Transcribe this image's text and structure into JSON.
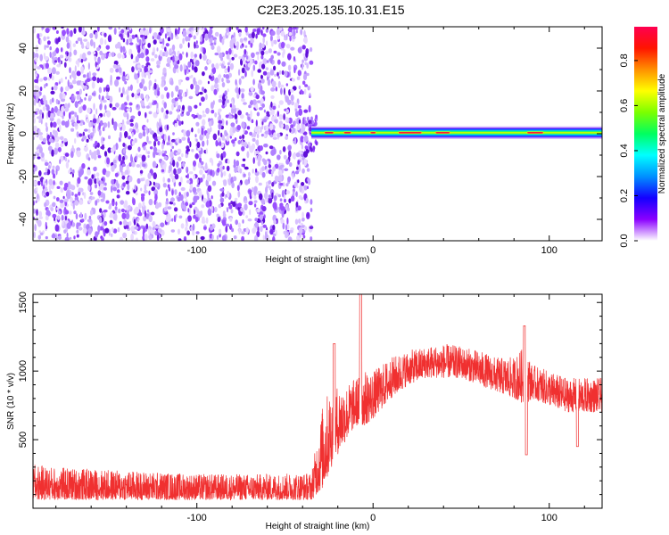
{
  "title": "C2E3.2025.135.10.31.E15",
  "chart_data": [
    {
      "type": "heatmap",
      "xlabel": "Height of straight line (km)",
      "ylabel": "Frequency (Hz)",
      "xlim": [
        -193,
        130
      ],
      "ylim": [
        -50,
        50
      ],
      "x_ticks": [
        -100,
        0,
        100
      ],
      "x_tick_labels": [
        "-100",
        "0",
        "100"
      ],
      "y_ticks": [
        -40,
        -20,
        0,
        20,
        40
      ],
      "y_tick_labels": [
        "-40",
        "-20",
        "0",
        "20",
        "40"
      ],
      "noise_region_x": [
        -193,
        -35
      ],
      "signal_band": {
        "x_range": [
          -35,
          130
        ],
        "center_freq_hz": 0.5,
        "half_width_hz": 2.5,
        "peak_segments_x": [
          [
            -28,
            -22
          ],
          [
            -17,
            -12
          ],
          [
            -2,
            2
          ],
          [
            14,
            28
          ],
          [
            35,
            44
          ],
          [
            87,
            97
          ]
        ]
      },
      "colorbar": {
        "label": "Normalized spectral amplitude",
        "range": [
          0,
          0.95
        ],
        "ticks": [
          0.0,
          0.2,
          0.4,
          0.6,
          0.8
        ],
        "tick_labels": [
          "0.0",
          "0.2",
          "0.4",
          "0.6",
          "0.8"
        ],
        "colors": [
          "#ffffff",
          "#8a00ff",
          "#1400ff",
          "#0090ff",
          "#00ffff",
          "#00ff60",
          "#7cff00",
          "#ffff00",
          "#ff9000",
          "#ff1400",
          "#ff0050"
        ]
      }
    },
    {
      "type": "line",
      "xlabel": "Height of straight line (km)",
      "ylabel": "SNR (10 * v/v)",
      "xlim": [
        -193,
        130
      ],
      "ylim": [
        0,
        1560
      ],
      "x_ticks": [
        -100,
        0,
        100
      ],
      "x_tick_labels": [
        "-100",
        "0",
        "100"
      ],
      "y_ticks": [
        500,
        1000,
        1500
      ],
      "y_tick_labels": [
        "500",
        "1000",
        "1500"
      ],
      "color": "#f03030",
      "envelope_x": [
        -193,
        -180,
        -150,
        -100,
        -60,
        -35,
        -28,
        -22,
        -15,
        -10,
        -5,
        0,
        10,
        20,
        30,
        40,
        50,
        60,
        70,
        80,
        87,
        90,
        100,
        110,
        120,
        130
      ],
      "envelope_low": [
        60,
        60,
        60,
        60,
        60,
        60,
        150,
        350,
        500,
        600,
        600,
        650,
        800,
        900,
        950,
        950,
        950,
        900,
        850,
        800,
        750,
        800,
        750,
        700,
        700,
        700
      ],
      "envelope_high": [
        320,
        300,
        280,
        250,
        250,
        260,
        800,
        900,
        900,
        950,
        1000,
        1000,
        1100,
        1150,
        1180,
        1200,
        1180,
        1150,
        1100,
        1100,
        1200,
        1050,
        1000,
        950,
        950,
        950
      ],
      "spikes": [
        {
          "x": -7,
          "y": 1560
        },
        {
          "x": -22,
          "y": 1200
        },
        {
          "x": 86,
          "y": 1330
        },
        {
          "x": 87,
          "y": 390
        },
        {
          "x": 116,
          "y": 450
        }
      ]
    }
  ]
}
